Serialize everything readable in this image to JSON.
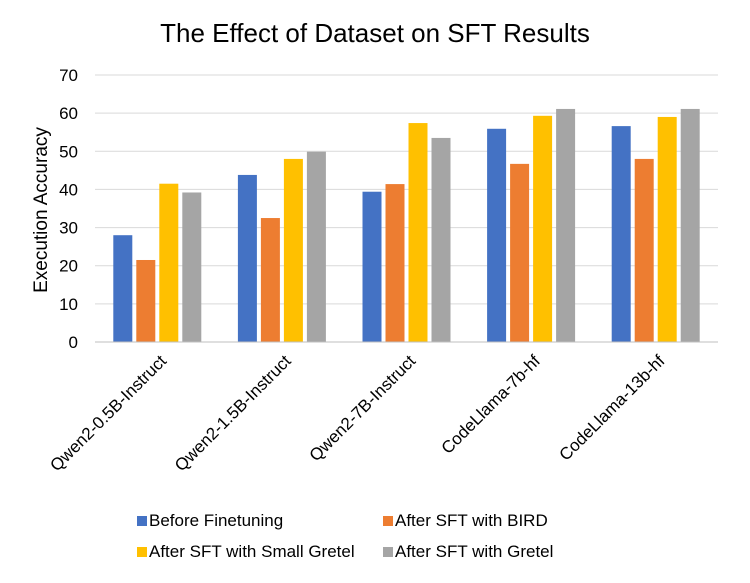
{
  "chart_data": {
    "type": "bar",
    "title": "The Effect of Dataset on SFT Results",
    "xlabel": "",
    "ylabel": "Execution Accuracy",
    "ylim": [
      0,
      70
    ],
    "yticks": [
      0,
      10,
      20,
      30,
      40,
      50,
      60,
      70
    ],
    "grid": true,
    "legend_position": "bottom",
    "categories": [
      "Qwen2-0.5B-Instruct",
      "Qwen2-1.5B-Instruct",
      "Qwen2-7B-Instruct",
      "CodeLlama-7b-hf",
      "CodeLlama-13b-hf"
    ],
    "series": [
      {
        "name": "Before Finetuning",
        "color": "#4472c4",
        "values": [
          28.0,
          43.8,
          39.4,
          55.9,
          56.6
        ]
      },
      {
        "name": "After SFT with BIRD",
        "color": "#ed7d31",
        "values": [
          21.5,
          32.5,
          41.4,
          46.7,
          48.0
        ]
      },
      {
        "name": "After SFT with Small Gretel",
        "color": "#ffc000",
        "values": [
          41.5,
          48.0,
          57.4,
          59.3,
          59.0
        ]
      },
      {
        "name": "After SFT with Gretel",
        "color": "#a5a5a5",
        "values": [
          39.2,
          49.9,
          53.5,
          61.1,
          61.1
        ]
      }
    ]
  }
}
